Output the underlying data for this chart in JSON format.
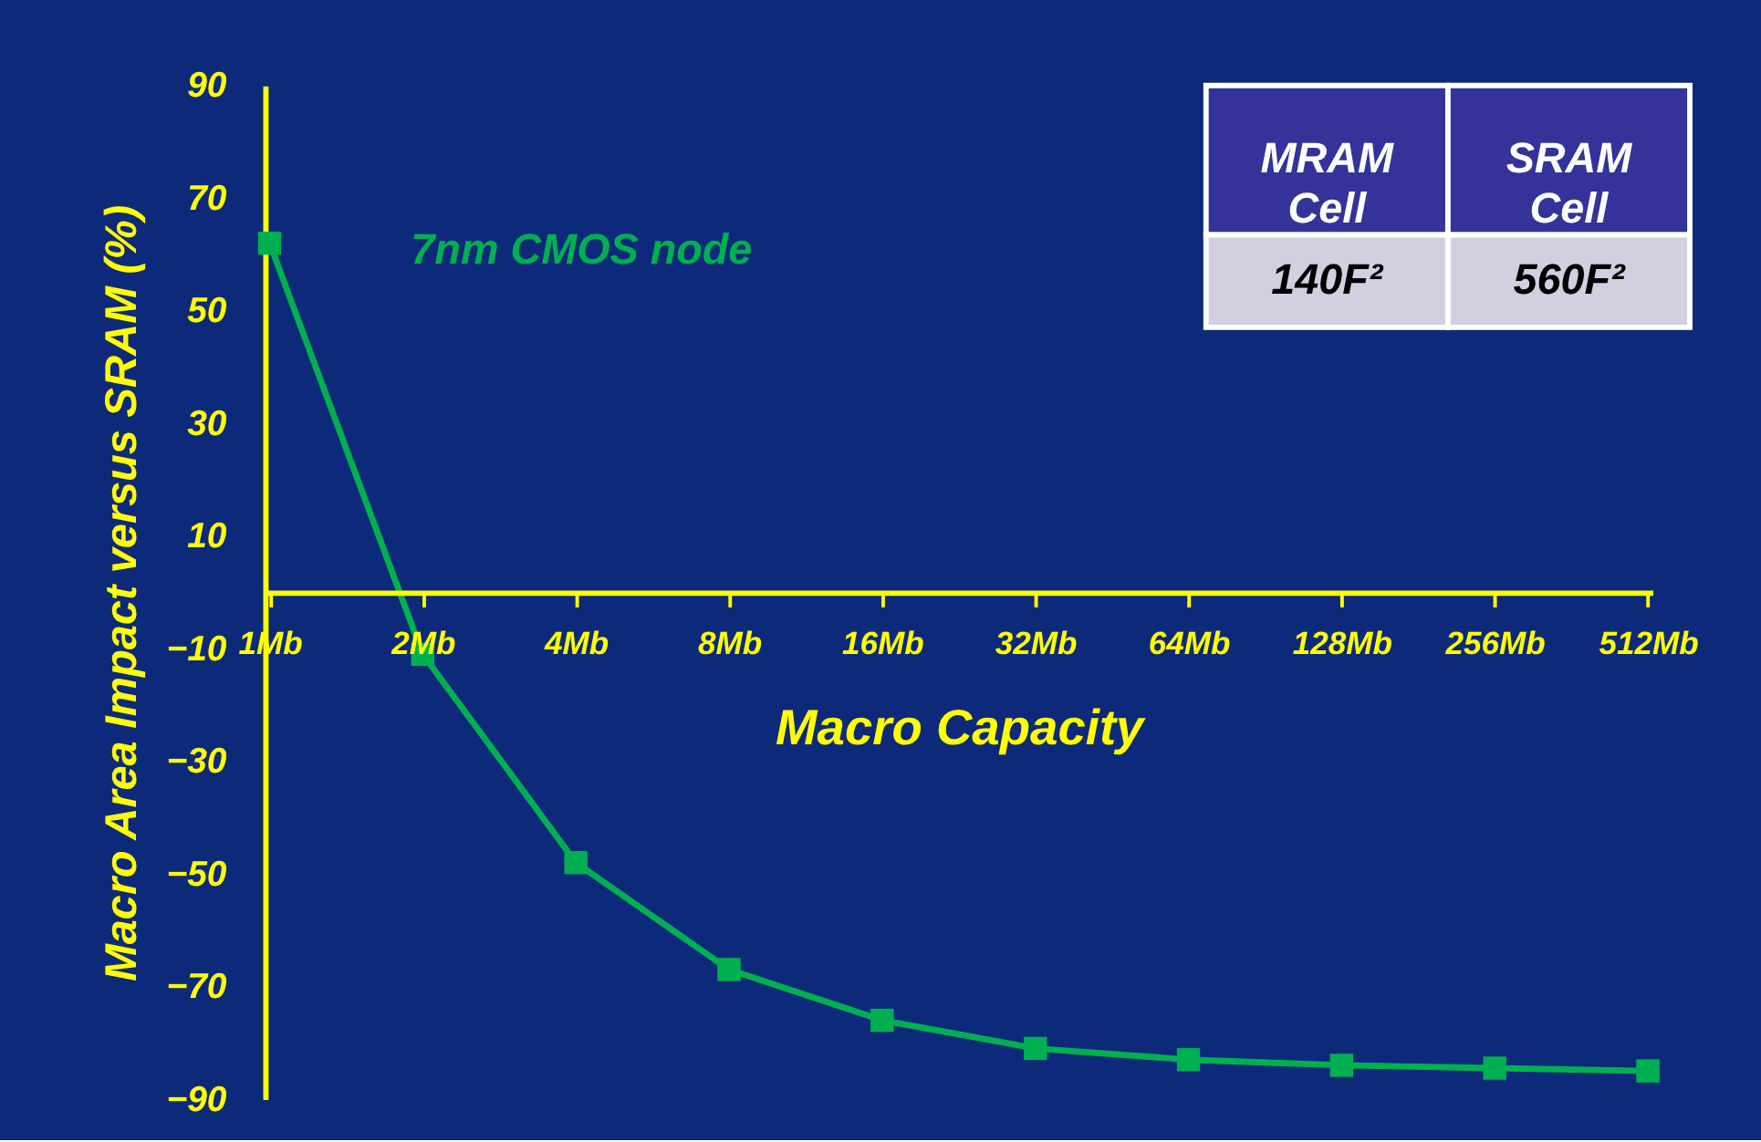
{
  "chart_data": {
    "type": "line",
    "xlabel": "Macro Capacity",
    "ylabel": "Macro Area Impact versus SRAM (%)",
    "categories": [
      "1Mb",
      "2Mb",
      "4Mb",
      "8Mb",
      "16Mb",
      "32Mb",
      "64Mb",
      "128Mb",
      "256Mb",
      "512Mb"
    ],
    "series": [
      {
        "color": "#00b050",
        "values": [
          62,
          -11,
          -48,
          -67,
          -76,
          -81,
          -83,
          -84,
          -84.5,
          -85
        ]
      }
    ],
    "ylim": [
      -90,
      90
    ],
    "yticks": [
      -90,
      -70,
      -50,
      -30,
      -10,
      10,
      30,
      50,
      70,
      90
    ],
    "annotations": [
      "7nm CMOS node",
      "MRAM Cell",
      "SRAM Cell",
      "140F²",
      "560F²"
    ],
    "marker": "square",
    "line_style": "solid",
    "grid": false
  }
}
